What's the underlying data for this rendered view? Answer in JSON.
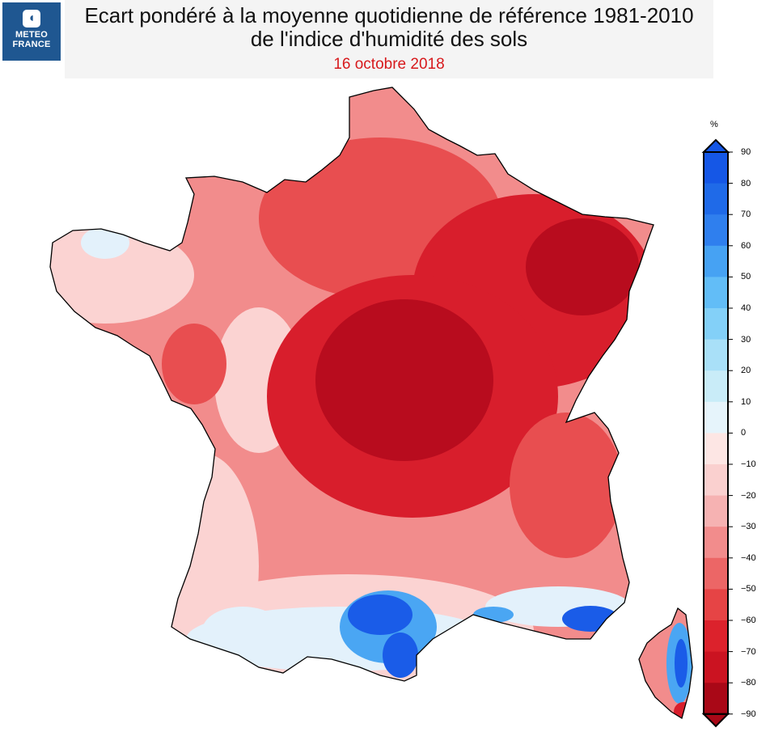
{
  "logo": {
    "line1": "METEO",
    "line2": "FRANCE"
  },
  "header": {
    "title_line1": "Ecart pondéré à la moyenne quotidienne de référence 1981-2010",
    "title_line2": "de l'indice d'humidité des sols",
    "date": "16 octobre 2018"
  },
  "legend": {
    "unit": "%",
    "labels": [
      "90",
      "80",
      "70",
      "60",
      "50",
      "40",
      "30",
      "20",
      "10",
      "0",
      "−10",
      "−20",
      "−30",
      "−40",
      "−50",
      "−60",
      "−70",
      "−80",
      "−90"
    ],
    "colors_top_to_bottom": [
      "#1557e6",
      "#1f6ae8",
      "#2f7fee",
      "#46a2f3",
      "#62bdf7",
      "#83d0f8",
      "#a9e0f8",
      "#c9ecf8",
      "#e6f4fb",
      "#fde6e4",
      "#fad0cf",
      "#f6b2b2",
      "#f28c8c",
      "#ec6666",
      "#e64445",
      "#dc222c",
      "#cb1321",
      "#a90817"
    ]
  },
  "map": {
    "palette": {
      "very_dry": "#b80c1e",
      "dry": "#d81e2c",
      "moderately_dry": "#e84e50",
      "slightly_dry": "#f28c8c",
      "near_normal_dry": "#fbd3d2",
      "near_normal_wet": "#e3f1fb",
      "wet": "#4aa6f3",
      "very_wet": "#1a5ce8"
    }
  }
}
